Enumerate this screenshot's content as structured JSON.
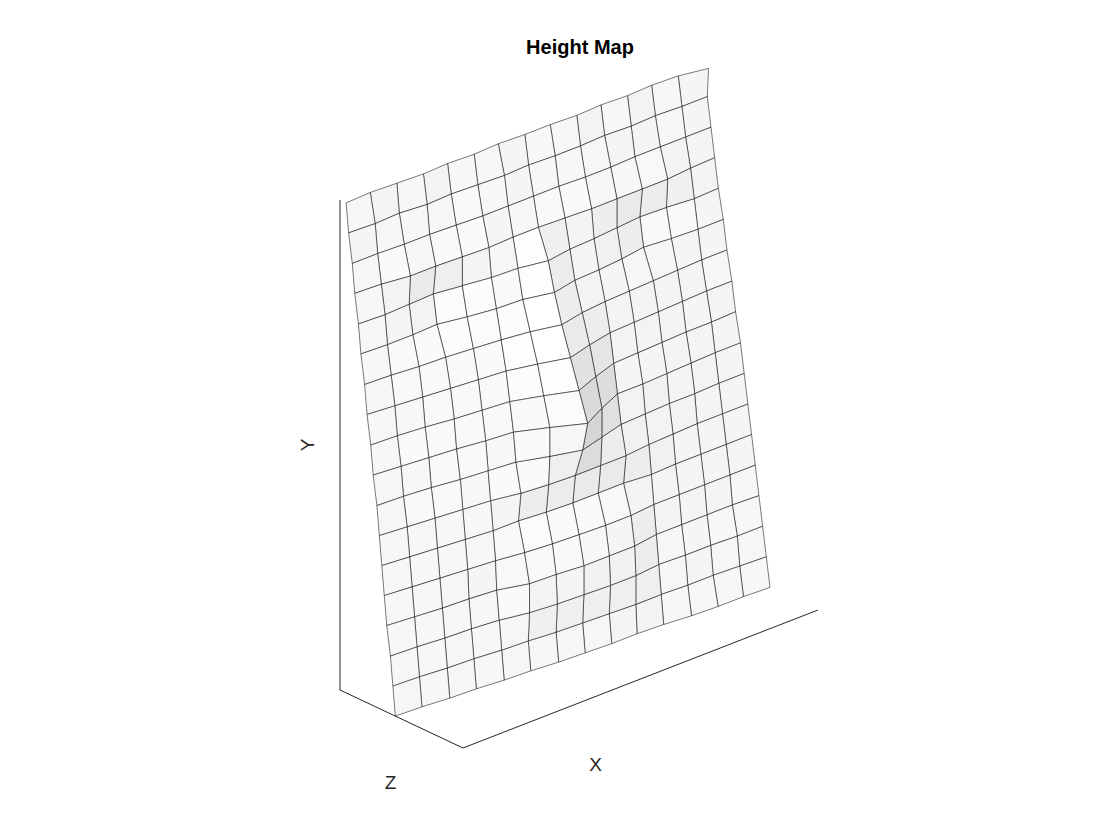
{
  "chart_data": {
    "type": "surface",
    "title": "Height Map",
    "x_label": "X",
    "y_label": "Y",
    "z_label": "Z",
    "xlim": [
      0,
      140
    ],
    "ylim": [
      0,
      170
    ],
    "zlim": [
      0,
      100
    ],
    "tick_labels": false,
    "color": "#000000",
    "x": [
      0,
      10,
      20,
      30,
      40,
      50,
      60,
      70,
      80,
      90,
      100,
      110,
      120,
      130,
      140
    ],
    "y": [
      0,
      10,
      20,
      30,
      40,
      50,
      60,
      70,
      80,
      90,
      100,
      110,
      120,
      130,
      140,
      150,
      160,
      170
    ],
    "z": [
      [
        45,
        46,
        48,
        49,
        51,
        52,
        54,
        55,
        56,
        56,
        57,
        59,
        60,
        60,
        61
      ],
      [
        43,
        44,
        46,
        47,
        49,
        50,
        52,
        53,
        54,
        55,
        55,
        56,
        56,
        57,
        58
      ],
      [
        41,
        42,
        44,
        45,
        47,
        51,
        53,
        54,
        55,
        55,
        53,
        54,
        54,
        55,
        55
      ],
      [
        38,
        40,
        42,
        43,
        45,
        51,
        52,
        54,
        54,
        54,
        51,
        51,
        51,
        51,
        52
      ],
      [
        36,
        38,
        40,
        42,
        44,
        47,
        49,
        50,
        51,
        51,
        49,
        49,
        49,
        49,
        49
      ],
      [
        34,
        36,
        38,
        40,
        42,
        42,
        44,
        45,
        45,
        45,
        47,
        46,
        46,
        46,
        46
      ],
      [
        32,
        34,
        36,
        38,
        40,
        44,
        46,
        47,
        47,
        47,
        45,
        44,
        43,
        43,
        43
      ],
      [
        30,
        31,
        33,
        36,
        38,
        40,
        47,
        53,
        48,
        43,
        42,
        41,
        41,
        40,
        40
      ],
      [
        27,
        29,
        31,
        33,
        36,
        38,
        47,
        57,
        48,
        40,
        40,
        39,
        38,
        37,
        37
      ],
      [
        25,
        26,
        28,
        31,
        33,
        35,
        42,
        50,
        43,
        37,
        36,
        35,
        34,
        34,
        33
      ],
      [
        22,
        24,
        26,
        28,
        30,
        32,
        37,
        43,
        38,
        34,
        33,
        32,
        31,
        30,
        30
      ],
      [
        20,
        21,
        23,
        24,
        26,
        28,
        31,
        36,
        32,
        30,
        29,
        28,
        27,
        26,
        26
      ],
      [
        17,
        18,
        18,
        17,
        21,
        24,
        25,
        30,
        26,
        25,
        23,
        20,
        22,
        23,
        23
      ],
      [
        15,
        16,
        15,
        14,
        17,
        20,
        21,
        25,
        22,
        21,
        19,
        17,
        18,
        20,
        19
      ],
      [
        12,
        13,
        16,
        16,
        17,
        18,
        17,
        17,
        18,
        19,
        19,
        19,
        19,
        17,
        16
      ],
      [
        10,
        10,
        11,
        11,
        12,
        13,
        13,
        13,
        13,
        14,
        14,
        13,
        13,
        13,
        13
      ],
      [
        7,
        8,
        7,
        9,
        8,
        9,
        10,
        9,
        10,
        10,
        9,
        10,
        9,
        10,
        10
      ],
      [
        5,
        4,
        5,
        6,
        5,
        6,
        5,
        6,
        6,
        7,
        6,
        7,
        6,
        7,
        11
      ]
    ]
  }
}
